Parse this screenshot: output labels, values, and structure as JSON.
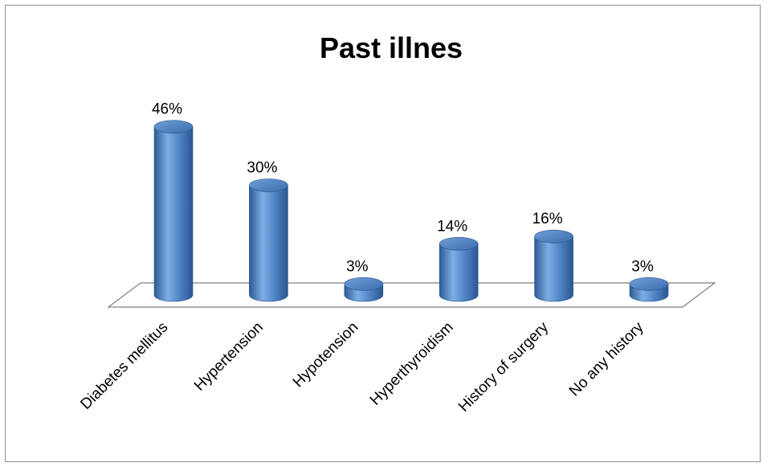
{
  "chart_data": {
    "type": "bar",
    "title": "Past illnes",
    "categories": [
      "Diabetes mellitus",
      "Hypertension",
      "Hypotension",
      "Hyperthyroidism",
      "History of surgery",
      "No any history"
    ],
    "values": [
      46,
      30,
      3,
      14,
      16,
      3
    ],
    "value_labels": [
      "46%",
      "30%",
      "3%",
      "14%",
      "16%",
      "3%"
    ],
    "unit": "%",
    "xlabel": "",
    "ylabel": "",
    "grid": false,
    "legend": "none",
    "style": "3d-cylinder",
    "colors": {
      "bar": "#4a7ebf",
      "bar_dark": "#2d5a93",
      "bar_light": "#7eaee6",
      "floor_stroke": "#808080"
    }
  }
}
